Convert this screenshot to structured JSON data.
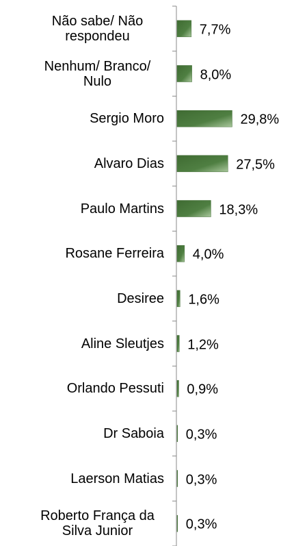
{
  "chart_data": {
    "type": "bar",
    "orientation": "horizontal",
    "categories": [
      "Não sabe/ Não respondeu",
      "Nenhum/ Branco/ Nulo",
      "Sergio Moro",
      "Alvaro Dias",
      "Paulo Martins",
      "Rosane Ferreira",
      "Desiree",
      "Aline Sleutjes",
      "Orlando Pessuti",
      "Dr Saboia",
      "Laerson Matias",
      "Roberto França da Silva Junior"
    ],
    "values": [
      7.7,
      8.0,
      29.8,
      27.5,
      18.3,
      4.0,
      1.6,
      1.2,
      0.9,
      0.3,
      0.3,
      0.3
    ],
    "value_labels": [
      "7,7%",
      "8,0%",
      "29,8%",
      "27,5%",
      "18,3%",
      "4,0%",
      "1,6%",
      "1,2%",
      "0,9%",
      "0,3%",
      "0,3%",
      "0,3%"
    ],
    "color": "#3f6b32"
  }
}
